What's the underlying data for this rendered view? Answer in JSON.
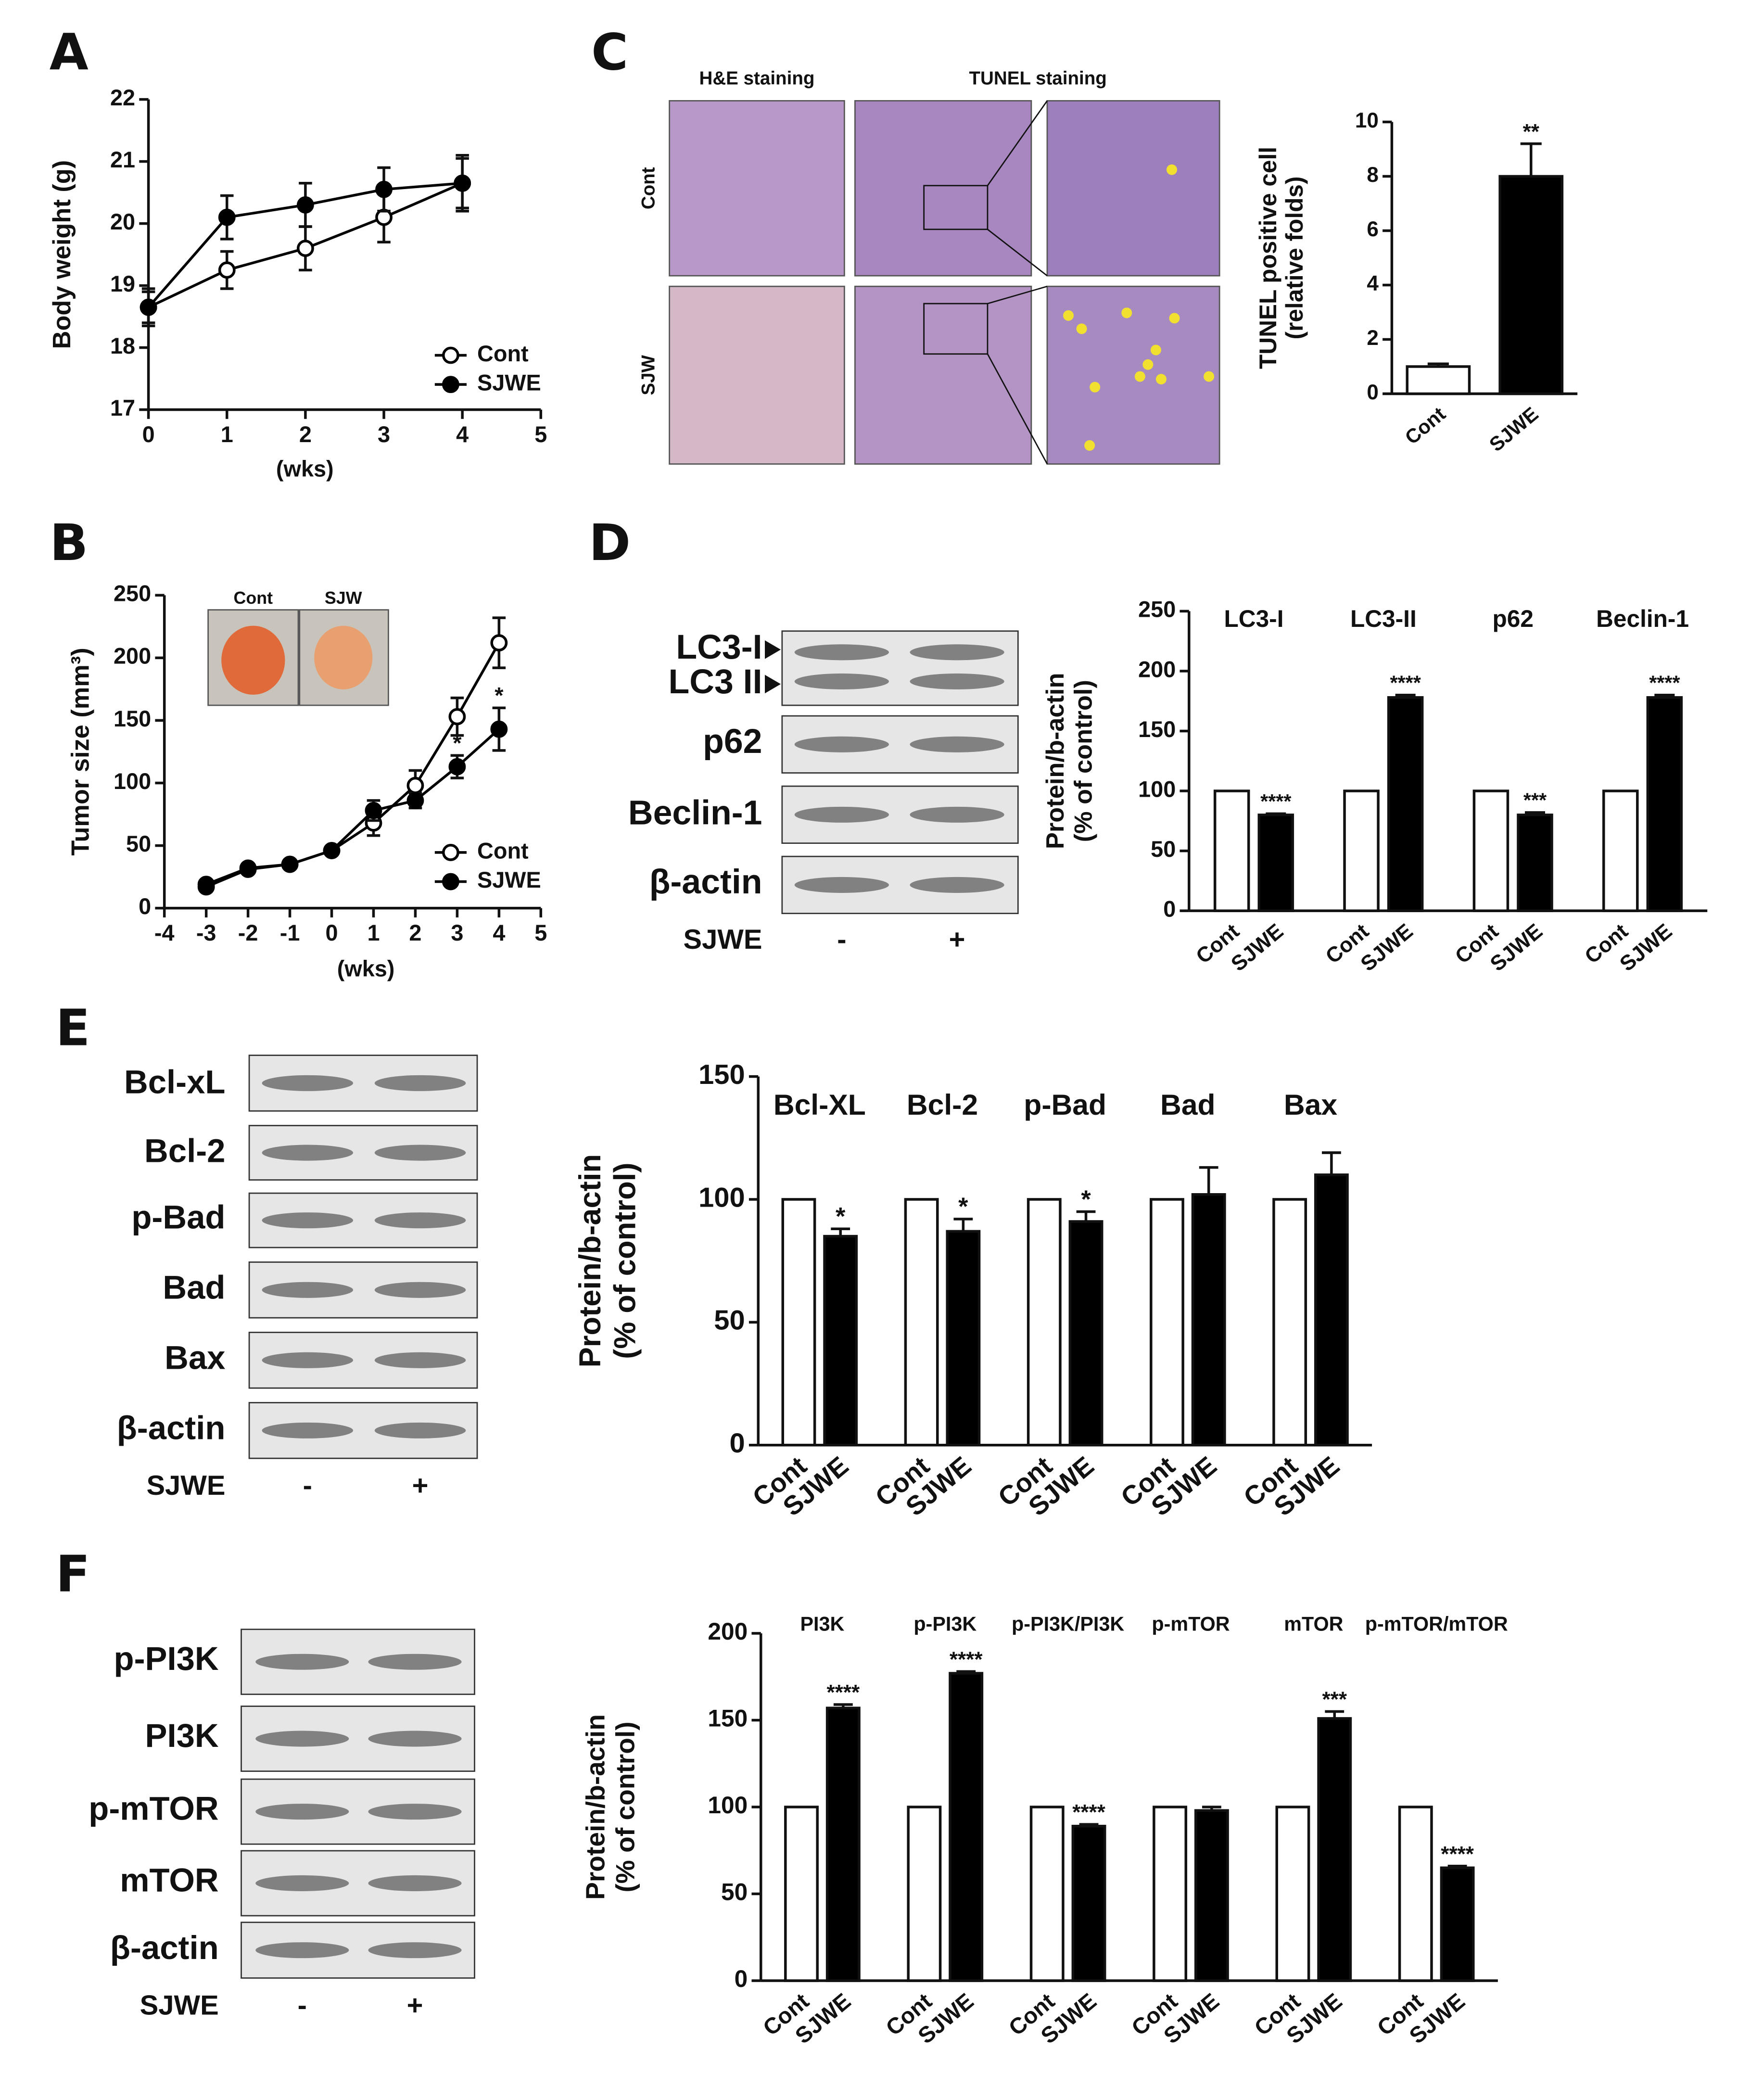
{
  "panel_labels": [
    "A",
    "B",
    "C",
    "D",
    "E",
    "F"
  ],
  "histology": {
    "columns": [
      "H&E staining",
      "TUNEL staining"
    ],
    "rows": [
      "Cont",
      "SJW"
    ]
  },
  "tumor_photo": {
    "labels": [
      "Cont",
      "SJW"
    ]
  },
  "blots": [
    {
      "proteins": [
        "LC3-I",
        "LC3 II",
        "p62",
        "Beclin-1",
        "β-actin"
      ],
      "treatment": "SJWE",
      "lanes": [
        "-",
        "+"
      ]
    },
    {
      "proteins": [
        "Bcl-xL",
        "Bcl-2",
        "p-Bad",
        "Bad",
        "Bax",
        "β-actin"
      ],
      "treatment": "SJWE",
      "lanes": [
        "-",
        "+"
      ]
    },
    {
      "proteins": [
        "p-PI3K",
        "PI3K",
        "p-mTOR",
        "mTOR",
        "β-actin"
      ],
      "treatment": "SJWE",
      "lanes": [
        "-",
        "+"
      ]
    }
  ],
  "chart_data": [
    {
      "type": "line",
      "xlabel": "(wks)",
      "ylabel": [
        "Body weight (g)"
      ],
      "x": [
        0,
        1,
        2,
        3,
        4
      ],
      "xlim": [
        0,
        5
      ],
      "xticks": [
        0,
        1,
        2,
        3,
        4,
        5
      ],
      "ylim": [
        17,
        22
      ],
      "yticks": [
        17,
        18,
        19,
        20,
        21,
        22
      ],
      "legend": "lower right",
      "series": [
        {
          "name": "Cont",
          "color": "#000000",
          "marker": "open",
          "values": [
            18.65,
            19.25,
            19.6,
            20.1,
            20.65
          ],
          "errors": [
            0.3,
            0.3,
            0.35,
            0.4,
            0.4
          ]
        },
        {
          "name": "SJWE",
          "color": "#000000",
          "marker": "filled",
          "values": [
            18.65,
            20.1,
            20.3,
            20.55,
            20.65
          ],
          "errors": [
            0.25,
            0.35,
            0.35,
            0.35,
            0.45
          ]
        }
      ]
    },
    {
      "type": "line",
      "xlabel": "(wks)",
      "ylabel": [
        "Tumor size (mm³)"
      ],
      "x": [
        -3,
        -2,
        -1,
        0,
        1,
        2,
        3,
        4
      ],
      "xlim": [
        -4,
        5
      ],
      "xticks": [
        -4,
        -3,
        -2,
        -1,
        0,
        1,
        2,
        3,
        4,
        5
      ],
      "ylim": [
        0,
        250
      ],
      "yticks": [
        0,
        50,
        100,
        150,
        200,
        250
      ],
      "legend": "lower right",
      "series": [
        {
          "name": "Cont",
          "color": "#000000",
          "marker": "open",
          "values": [
            17,
            31,
            35,
            46,
            68,
            98,
            153,
            212
          ],
          "errors": [
            3,
            3,
            3,
            3,
            10,
            12,
            15,
            20
          ]
        },
        {
          "name": "SJWE",
          "color": "#000000",
          "marker": "filled",
          "values": [
            19,
            32,
            35,
            46,
            78,
            86,
            113,
            143
          ],
          "errors": [
            3,
            3,
            3,
            3,
            8,
            6,
            9,
            17
          ],
          "sig": [
            null,
            null,
            null,
            null,
            null,
            null,
            "*",
            "*"
          ]
        }
      ]
    },
    {
      "type": "bar",
      "ylabel": [
        "TUNEL positive cell",
        "(relative folds)"
      ],
      "categories": [
        "Cont",
        "SJWE"
      ],
      "values": [
        1,
        8
      ],
      "errors": [
        0.1,
        1.2
      ],
      "colors": [
        "#ffffff",
        "#000000"
      ],
      "sig": [
        null,
        "**"
      ],
      "ylim": [
        0,
        10
      ],
      "yticks": [
        0,
        2,
        4,
        6,
        8,
        10
      ]
    },
    {
      "type": "bar",
      "ylabel": [
        "Protein/b-actin",
        "(% of control)"
      ],
      "groups": [
        "LC3-I",
        "LC3-II",
        "p62",
        "Beclin-1"
      ],
      "ylim": [
        0,
        250
      ],
      "yticks": [
        0,
        50,
        100,
        150,
        200,
        250
      ],
      "series": [
        {
          "name": "Cont",
          "color": "#ffffff",
          "values": [
            100,
            100,
            100,
            100
          ]
        },
        {
          "name": "SJWE",
          "color": "#000000",
          "values": [
            80,
            178,
            80,
            178
          ],
          "errors": [
            1,
            2,
            2,
            2
          ],
          "sig": [
            "****",
            "****",
            "***",
            "****"
          ]
        }
      ]
    },
    {
      "type": "bar",
      "ylabel": [
        "Protein/b-actin",
        "(% of control)"
      ],
      "groups": [
        "Bcl-XL",
        "Bcl-2",
        "p-Bad",
        "Bad",
        "Bax"
      ],
      "ylim": [
        0,
        150
      ],
      "yticks": [
        0,
        50,
        100,
        150
      ],
      "series": [
        {
          "name": "Cont",
          "color": "#ffffff",
          "values": [
            100,
            100,
            100,
            100,
            100
          ]
        },
        {
          "name": "SJWE",
          "color": "#000000",
          "values": [
            85,
            87,
            91,
            102,
            110
          ],
          "errors": [
            3,
            5,
            4,
            11,
            9
          ],
          "sig": [
            "*",
            "*",
            "*",
            null,
            null
          ]
        }
      ]
    },
    {
      "type": "bar",
      "ylabel": [
        "Protein/b-actin",
        "(% of control)"
      ],
      "groups": [
        "PI3K",
        "p-PI3K",
        "p-PI3K/PI3K",
        "p-mTOR",
        "mTOR",
        "p-mTOR/mTOR"
      ],
      "ylim": [
        0,
        200
      ],
      "yticks": [
        0,
        50,
        100,
        150,
        200
      ],
      "series": [
        {
          "name": "Cont",
          "color": "#ffffff",
          "values": [
            100,
            100,
            100,
            100,
            100,
            100
          ]
        },
        {
          "name": "SJWE",
          "color": "#000000",
          "values": [
            157,
            177,
            89,
            98,
            151,
            65
          ],
          "errors": [
            2,
            1,
            1,
            2,
            4,
            1
          ],
          "sig": [
            "****",
            "****",
            "****",
            null,
            "***",
            "****"
          ]
        }
      ]
    }
  ]
}
